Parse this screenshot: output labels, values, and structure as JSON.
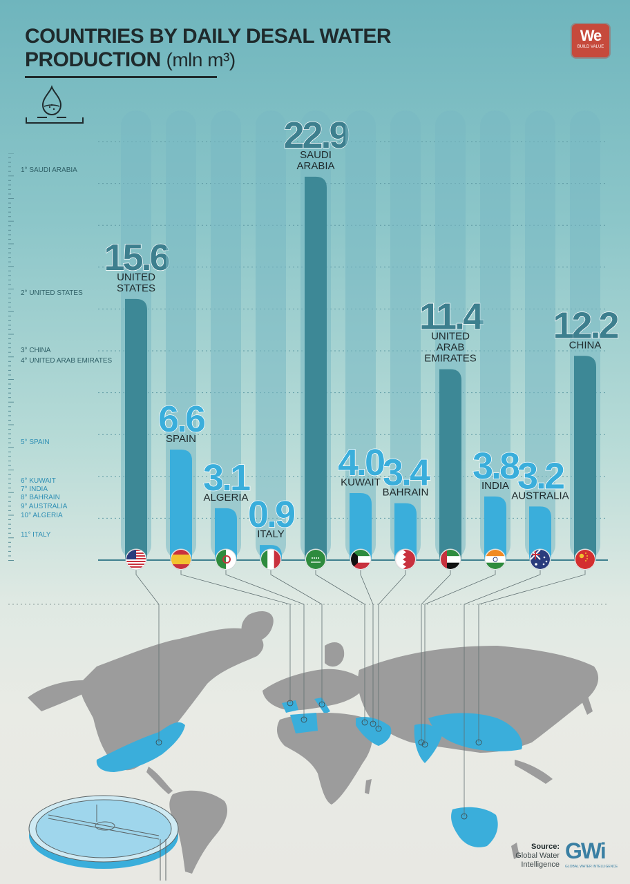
{
  "title": {
    "line1": "COUNTRIES BY DAILY DESAL WATER",
    "line2": "PRODUCTION",
    "unit": "(mln m³)"
  },
  "logo": {
    "text": "We",
    "subtext": "BUILD VALUE"
  },
  "ranking": [
    {
      "label": "1° SAUDI ARABIA",
      "tone": "dark"
    },
    {
      "label": "2° UNITED STATES",
      "tone": "dark"
    },
    {
      "label": "3° CHINA",
      "tone": "dark"
    },
    {
      "label": "4° UNITED ARAB EMIRATES",
      "tone": "dark"
    },
    {
      "label": "5° SPAIN",
      "tone": "light"
    },
    {
      "label": "6° KUWAIT",
      "tone": "light"
    },
    {
      "label": "7° INDIA",
      "tone": "light"
    },
    {
      "label": "8° BAHRAIN",
      "tone": "light"
    },
    {
      "label": "9° AUSTRALIA",
      "tone": "light"
    },
    {
      "label": "10° ALGERIA",
      "tone": "light"
    },
    {
      "label": "11° ITALY",
      "tone": "light"
    }
  ],
  "chart_data": {
    "type": "bar",
    "title": "COUNTRIES BY DAILY DESAL WATER PRODUCTION (mln m³)",
    "categories": [
      "UNITED STATES",
      "SPAIN",
      "ALGERIA",
      "ITALY",
      "SAUDI ARABIA",
      "KUWAIT",
      "BAHRAIN",
      "UNITED ARAB EMIRATES",
      "INDIA",
      "AUSTRALIA",
      "CHINA"
    ],
    "label_lines": [
      [
        "UNITED",
        "STATES"
      ],
      [
        "SPAIN"
      ],
      [
        "ALGERIA"
      ],
      [
        "ITALY"
      ],
      [
        "SAUDI",
        "ARABIA"
      ],
      [
        "KUWAIT"
      ],
      [
        "BAHRAIN"
      ],
      [
        "UNITED",
        "ARAB",
        "EMIRATES"
      ],
      [
        "INDIA"
      ],
      [
        "AUSTRALIA"
      ],
      [
        "CHINA"
      ]
    ],
    "values": [
      15.6,
      6.6,
      3.1,
      0.9,
      22.9,
      4.0,
      3.4,
      11.4,
      3.8,
      3.2,
      12.2
    ],
    "value_labels": [
      "15.6",
      "6.6",
      "3.1",
      "0.9",
      "22.9",
      "4.0",
      "3.4",
      "11.4",
      "3.8",
      "3.2",
      "12.2"
    ],
    "tones": [
      "dark",
      "light",
      "light",
      "light",
      "dark",
      "light",
      "light",
      "dark",
      "light",
      "light",
      "dark"
    ],
    "flags": [
      "flag-usa-icon",
      "flag-spain-icon",
      "flag-algeria-icon",
      "flag-italy-icon",
      "flag-saudi-arabia-icon",
      "flag-kuwait-icon",
      "flag-bahrain-icon",
      "flag-uae-icon",
      "flag-india-icon",
      "flag-australia-icon",
      "flag-china-icon"
    ],
    "ylim": [
      0,
      25
    ],
    "colors": {
      "dark": "#3d8896",
      "light": "#3aaedb",
      "track": "#78b8c2",
      "dark_text": "#3d7f8e",
      "light_text": "#3aaedb",
      "map_land": "#9c9c9c",
      "map_highlight": "#3aaedb"
    }
  },
  "source": {
    "label": "Source:",
    "line1": "Global Water",
    "line2": "Intelligence"
  },
  "gwi": {
    "letters": "GWi",
    "caption": "GLOBAL WATER INTELLIGENCE"
  }
}
